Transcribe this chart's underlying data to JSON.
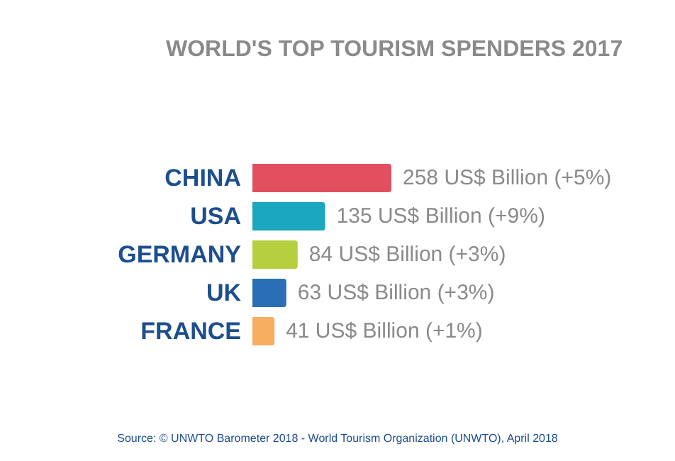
{
  "chart_data": {
    "type": "bar",
    "orientation": "horizontal",
    "tick_labels": false,
    "title": "WORLD'S TOP TOURISM SPENDERS 2017",
    "categories": [
      "CHINA",
      "USA",
      "GERMANY",
      "UK",
      "FRANCE"
    ],
    "values": [
      258,
      135,
      84,
      63,
      41
    ],
    "colors": [
      "#e2505f",
      "#1aa7bf",
      "#b5cf3f",
      "#2a6fb6",
      "#f7ae60"
    ],
    "value_labels": [
      "258 US$ Billion (+5%)",
      "135 US$ Billion (+9%)",
      "84 US$ Billion (+3%)",
      "63 US$ Billion (+3%)",
      "41 US$ Billion (+1%)"
    ],
    "annotations": [
      "Source: © UNWTO Barometer 2018 - World Tourism Organization (UNWTO), April 2018"
    ]
  }
}
